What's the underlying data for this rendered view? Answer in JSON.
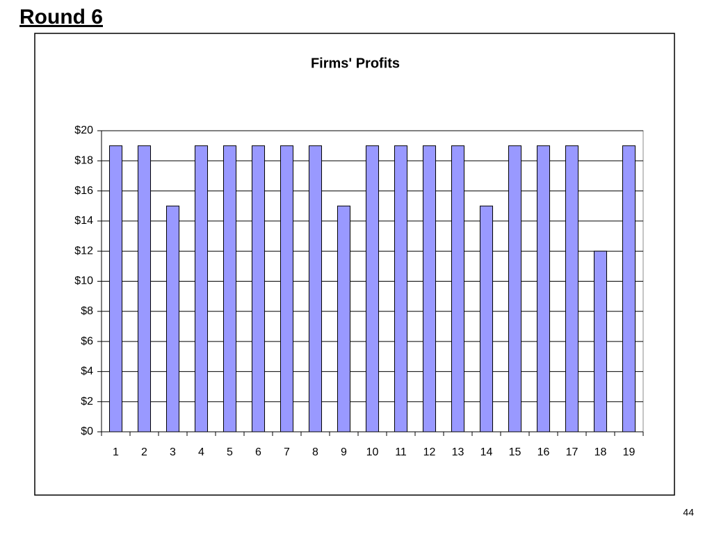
{
  "slide_title": "Round 6",
  "page_number": "44",
  "chart_data": {
    "type": "bar",
    "title": "Firms' Profits",
    "categories": [
      "1",
      "2",
      "3",
      "4",
      "5",
      "6",
      "7",
      "8",
      "9",
      "10",
      "11",
      "12",
      "13",
      "14",
      "15",
      "16",
      "17",
      "18",
      "19"
    ],
    "values": [
      19,
      19,
      15,
      19,
      19,
      19,
      19,
      19,
      15,
      19,
      19,
      19,
      19,
      15,
      19,
      19,
      19,
      12,
      19
    ],
    "color": "#9999ff",
    "ylim": [
      0,
      20
    ],
    "yticks": [
      {
        "value": 0,
        "label": "$0"
      },
      {
        "value": 2,
        "label": "$2"
      },
      {
        "value": 4,
        "label": "$4"
      },
      {
        "value": 6,
        "label": "$6"
      },
      {
        "value": 8,
        "label": "$8"
      },
      {
        "value": 10,
        "label": "$10"
      },
      {
        "value": 12,
        "label": "$12"
      },
      {
        "value": 14,
        "label": "$14"
      },
      {
        "value": 16,
        "label": "$16"
      },
      {
        "value": 18,
        "label": "$18"
      },
      {
        "value": 20,
        "label": "$20"
      }
    ],
    "grid": true
  }
}
